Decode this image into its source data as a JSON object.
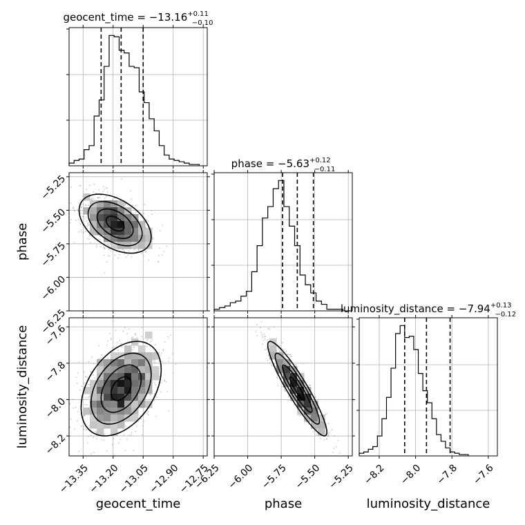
{
  "chart_data": {
    "type": "corner",
    "parameters": [
      {
        "name": "geocent_time",
        "median": -13.16,
        "plus": "+0.11",
        "minus": "−0.10",
        "range": [
          -13.42,
          -12.73
        ],
        "ticks": [
          "−13.35",
          "−13.20",
          "−13.05",
          "−12.90",
          "−12.75"
        ],
        "tick_values": [
          -13.35,
          -13.2,
          -13.05,
          -12.9,
          -12.75
        ]
      },
      {
        "name": "phase",
        "median": -5.63,
        "plus": "+0.12",
        "minus": "−0.11",
        "range": [
          -6.25,
          -5.22
        ],
        "ticks": [
          "−6.25",
          "−6.00",
          "−5.75",
          "−5.50",
          "−5.25"
        ],
        "tick_values": [
          -6.25,
          -6.0,
          -5.75,
          -5.5,
          -5.25
        ]
      },
      {
        "name": "luminosity_distance",
        "median": -7.94,
        "plus": "+0.13",
        "minus": "−0.12",
        "range": [
          -8.31,
          -7.55
        ],
        "ticks": [
          "−8.2",
          "−8.0",
          "−7.8",
          "−7.6"
        ],
        "tick_values": [
          -8.2,
          -8.0,
          -7.8,
          -7.6
        ]
      }
    ],
    "titles": [
      {
        "main": "geocent_time = −13.16",
        "sup": "+0.11",
        "sub": "−0.10"
      },
      {
        "main": "phase = −5.63",
        "sup": "+0.12",
        "sub": "−0.11"
      },
      {
        "main": "luminosity_distance = −7.94",
        "sup": "+0.13",
        "sub": "−0.12"
      }
    ],
    "axis_labels": {
      "geocent_time": "geocent_time",
      "phase": "phase",
      "luminosity_distance": "luminosity_distance"
    },
    "histograms": {
      "geocent_time": {
        "bin_start": -13.42,
        "bin_width": 0.025,
        "counts": [
          2,
          4,
          5,
          12,
          15,
          37,
          49,
          74,
          97,
          96,
          86,
          84,
          74,
          73,
          55,
          47,
          35,
          26,
          15,
          8,
          5,
          4,
          3,
          2,
          1,
          1
        ]
      },
      "phase": {
        "bin_start": -6.25,
        "bin_width": 0.04,
        "counts": [
          1,
          2,
          3,
          5,
          6,
          9,
          12,
          24,
          40,
          57,
          64,
          75,
          80,
          64,
          52,
          40,
          22,
          16,
          11,
          6,
          4,
          1,
          1,
          1
        ]
      },
      "luminosity_distance": {
        "bin_start": -8.31,
        "bin_width": 0.025,
        "counts": [
          2,
          3,
          5,
          7,
          15,
          28,
          44,
          66,
          92,
          98,
          89,
          90,
          80,
          62,
          49,
          40,
          28,
          16,
          11,
          6,
          3,
          2,
          1,
          1
        ]
      }
    },
    "scatter_2d": [
      {
        "x": "geocent_time",
        "y": "phase",
        "center": [
          -13.19,
          -5.6
        ],
        "spread": [
          0.09,
          0.11
        ],
        "correlation": -0.45
      },
      {
        "x": "geocent_time",
        "y": "luminosity_distance",
        "center": [
          -13.16,
          -7.94
        ],
        "spread": [
          0.1,
          0.13
        ],
        "correlation": 0.4
      },
      {
        "x": "phase",
        "y": "luminosity_distance",
        "center": [
          -5.63,
          -7.94
        ],
        "spread": [
          0.11,
          0.13
        ],
        "correlation": -0.92
      }
    ],
    "quantile_lines": {
      "geocent_time": [
        -13.26,
        -13.16,
        -13.05
      ],
      "phase": [
        -5.74,
        -5.63,
        -5.51
      ],
      "luminosity_distance": [
        -8.06,
        -7.94,
        -7.81
      ]
    },
    "grid": true
  }
}
